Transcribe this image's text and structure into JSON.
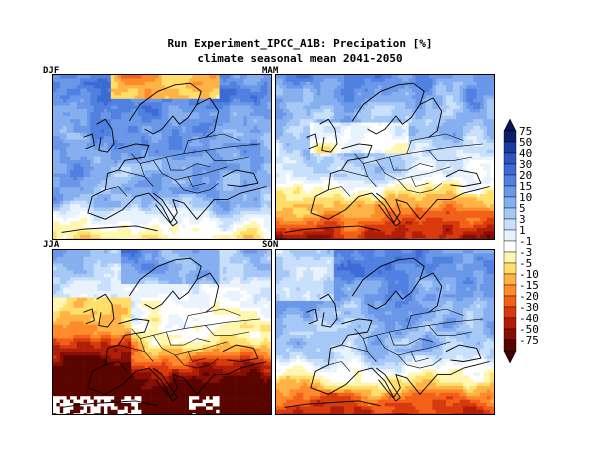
{
  "title": "Run Experiment_IPCC_A1B: Precipation [%]",
  "subtitle": "climate seasonal mean 2041-2050",
  "panels": [
    {
      "label": "DJF",
      "regime": "wet-north"
    },
    {
      "label": "MAM",
      "regime": "dry-south"
    },
    {
      "label": "JJA",
      "regime": "very-dry-south"
    },
    {
      "label": "SON",
      "regime": "dry-south-wet-north"
    }
  ],
  "colorbar": {
    "levels": [
      "75",
      "50",
      "40",
      "30",
      "20",
      "15",
      "10",
      "5",
      "3",
      "1",
      "-1",
      "-3",
      "-5",
      "-10",
      "-15",
      "-20",
      "-30",
      "-40",
      "-50",
      "-75"
    ],
    "colors": [
      "#0b1f6b",
      "#1c3b9e",
      "#2d54c0",
      "#3d6bd6",
      "#5080e0",
      "#6a97e8",
      "#86aff0",
      "#a6c8f6",
      "#c8e0fb",
      "#e9f3fe",
      "#ffffff",
      "#fff6b0",
      "#ffde6a",
      "#ffb347",
      "#ff8a2a",
      "#f2601a",
      "#d83a0e",
      "#b01e08",
      "#860e04",
      "#5a0400"
    ],
    "arrow_top_color": "#081552",
    "arrow_bottom_color": "#3c0200"
  }
}
